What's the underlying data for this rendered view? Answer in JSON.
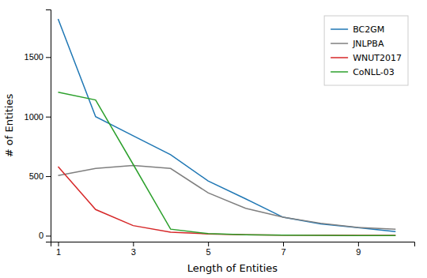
{
  "chart_data": {
    "type": "line",
    "xlabel": "Length of Entities",
    "ylabel": "# of Entities",
    "x": [
      1,
      2,
      3,
      4,
      5,
      6,
      7,
      8,
      9,
      10
    ],
    "series": [
      {
        "name": "BC2GM",
        "color": "#1f77b4",
        "values": [
          1820,
          1000,
          840,
          680,
          460,
          310,
          155,
          100,
          68,
          35
        ]
      },
      {
        "name": "JNLPBA",
        "color": "#7f7f7f",
        "values": [
          505,
          565,
          590,
          565,
          360,
          230,
          155,
          105,
          70,
          55
        ]
      },
      {
        "name": "WNUT2017",
        "color": "#d62728",
        "values": [
          580,
          220,
          85,
          30,
          15,
          8,
          5,
          4,
          3,
          3
        ]
      },
      {
        "name": "CoNLL-03",
        "color": "#2ca02c",
        "values": [
          1205,
          1140,
          600,
          55,
          18,
          8,
          4,
          3,
          2,
          2
        ]
      }
    ],
    "xlim": [
      0.8,
      10.5
    ],
    "ylim": [
      -50,
      1900
    ],
    "xticks": [
      1,
      3,
      5,
      7,
      9
    ],
    "yticks": [
      0,
      500,
      1000,
      1500
    ],
    "legend": "upper right"
  }
}
